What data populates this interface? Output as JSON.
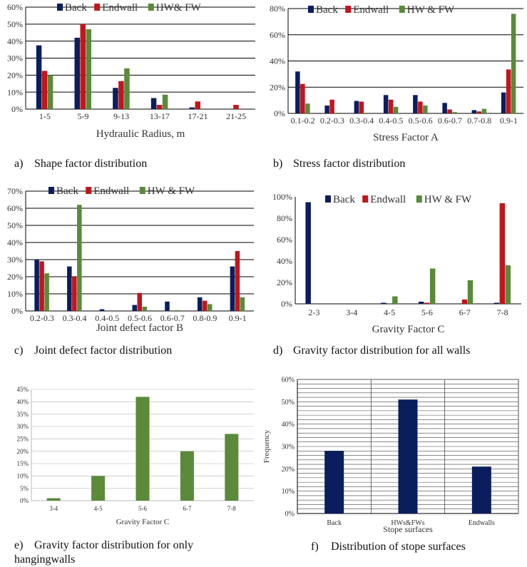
{
  "colors": {
    "back": "#0a1e5e",
    "endwall": "#c0161c",
    "hwfw": "#5a8a3a",
    "grid": "#000000"
  },
  "chart_data": [
    {
      "id": "a",
      "type": "bar",
      "categories": [
        "1-5",
        "5-9",
        "9-13",
        "13-17",
        "17-21",
        "21-25"
      ],
      "series": [
        {
          "name": "Back",
          "values": [
            37.5,
            42,
            12.5,
            6.5,
            1,
            0
          ]
        },
        {
          "name": "Endwall",
          "values": [
            22.5,
            50,
            16.5,
            2.5,
            4.5,
            2.5
          ]
        },
        {
          "name": "HW& FW",
          "values": [
            20,
            47,
            24,
            8.5,
            0,
            0
          ]
        }
      ],
      "yticks": [
        "0%",
        "10%",
        "20%",
        "30%",
        "40%",
        "50%",
        "60%"
      ],
      "ylim": [
        0,
        60
      ],
      "xlabel": "Hydraulic Radius, m",
      "ylabel": "",
      "legend": "top-right",
      "grid": true
    },
    {
      "id": "b",
      "type": "bar",
      "categories": [
        "0.1-0.2",
        "0.2-0.3",
        "0.3-0.4",
        "0.4-0.5",
        "0.5-0.6",
        "0.6-0.7",
        "0.7-0.8",
        "0.9-1"
      ],
      "series": [
        {
          "name": "Back",
          "values": [
            32,
            6,
            9.5,
            14,
            14,
            8,
            2.5,
            16
          ]
        },
        {
          "name": "Endwall",
          "values": [
            22.5,
            10.5,
            9,
            10.5,
            9,
            3,
            1.5,
            33.5
          ]
        },
        {
          "name": "HW & FW",
          "values": [
            7.5,
            0.5,
            0.5,
            5,
            6,
            1,
            3.5,
            76
          ]
        }
      ],
      "yticks": [
        "0%",
        "20%",
        "40%",
        "60%",
        "80%"
      ],
      "ylim": [
        0,
        80
      ],
      "xlabel": "Stress Factor A",
      "ylabel": "",
      "legend": "top",
      "grid": true
    },
    {
      "id": "c",
      "type": "bar",
      "categories": [
        "0.2-0.3",
        "0.3-0.4",
        "0.4-0.5",
        "0.5-0.6",
        "0.6-0.7",
        "0.8-0.9",
        "0.9-1"
      ],
      "series": [
        {
          "name": "Back",
          "values": [
            30,
            26,
            1,
            3.5,
            5.5,
            8,
            26
          ]
        },
        {
          "name": "Endwall",
          "values": [
            29,
            20,
            0,
            10.5,
            0,
            6,
            35
          ]
        },
        {
          "name": "HW & FW",
          "values": [
            22,
            62,
            0,
            2.5,
            0.5,
            4,
            8
          ]
        }
      ],
      "yticks": [
        "0%",
        "10%",
        "20%",
        "30%",
        "40%",
        "50%",
        "60%",
        "70%"
      ],
      "ylim": [
        0,
        70
      ],
      "xlabel": "Joint defect factor B",
      "ylabel": "",
      "legend": "top",
      "grid": true
    },
    {
      "id": "d",
      "type": "bar",
      "categories": [
        "2-3",
        "3-4",
        "4-5",
        "5-6",
        "6-7",
        "7-8"
      ],
      "series": [
        {
          "name": "Back",
          "values": [
            95,
            0,
            1,
            2,
            0,
            1
          ]
        },
        {
          "name": "Endwall",
          "values": [
            0,
            0,
            0,
            1,
            4,
            94
          ]
        },
        {
          "name": "HW & FW",
          "values": [
            0,
            0,
            7,
            33,
            22,
            36
          ]
        }
      ],
      "yticks": [
        "0%",
        "20%",
        "40%",
        "60%",
        "80%",
        "100%"
      ],
      "ylim": [
        0,
        100
      ],
      "xlabel": "Gravity Factor C",
      "ylabel": "",
      "legend": "top",
      "grid": false
    },
    {
      "id": "e",
      "type": "bar",
      "categories": [
        "3-4",
        "4-5",
        "5-6",
        "6-7",
        "7-8"
      ],
      "series": [
        {
          "name": "",
          "values": [
            1,
            10,
            42,
            20,
            27
          ]
        }
      ],
      "yticks": [
        "0%",
        "5%",
        "10%",
        "15%",
        "20%",
        "25%",
        "30%",
        "35%",
        "40%",
        "45%"
      ],
      "ylim": [
        0,
        45
      ],
      "xlabel": "Gravity Factor C",
      "ylabel": "",
      "legend": "none",
      "grid": true
    },
    {
      "id": "f",
      "type": "bar",
      "categories": [
        "Back",
        "HWs&FWs",
        "Endwalls"
      ],
      "series": [
        {
          "name": "",
          "values": [
            28,
            51,
            21
          ]
        }
      ],
      "yticks": [
        "0%",
        "10%",
        "20%",
        "30%",
        "40%",
        "50%",
        "60%"
      ],
      "ylim": [
        0,
        60
      ],
      "xlabel": "Stope surfaces",
      "ylabel": "Frequency",
      "legend": "none",
      "grid": true
    }
  ],
  "captions": [
    {
      "tag": "a)",
      "text": "Shape factor distribution"
    },
    {
      "tag": "b)",
      "text": "Stress factor distribution"
    },
    {
      "tag": "c)",
      "text": "Joint defect factor distribution"
    },
    {
      "tag": "d)",
      "text": "Gravity factor distribution for all walls"
    },
    {
      "tag": "e)",
      "text": "Gravity factor distribution for only hangingwalls"
    },
    {
      "tag": "f)",
      "text": "Distribution of stope surfaces"
    }
  ]
}
